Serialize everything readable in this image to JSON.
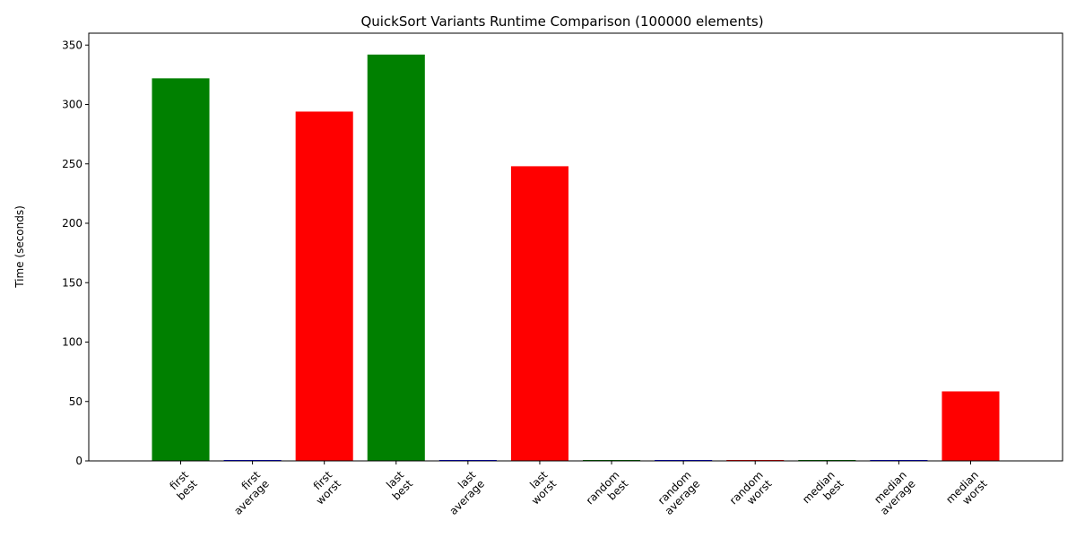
{
  "chart_data": {
    "type": "bar",
    "title": "QuickSort Variants Runtime Comparison (100000 elements)",
    "xlabel": "",
    "ylabel": "Time (seconds)",
    "ylim": [
      0,
      360
    ],
    "yticks": [
      0,
      50,
      100,
      150,
      200,
      250,
      300,
      350
    ],
    "grid": false,
    "categories": [
      [
        "first",
        "best"
      ],
      [
        "first",
        "average"
      ],
      [
        "first",
        "worst"
      ],
      [
        "last",
        "best"
      ],
      [
        "last",
        "average"
      ],
      [
        "last",
        "worst"
      ],
      [
        "random",
        "best"
      ],
      [
        "random",
        "average"
      ],
      [
        "random",
        "worst"
      ],
      [
        "median",
        "best"
      ],
      [
        "median",
        "average"
      ],
      [
        "median",
        "worst"
      ]
    ],
    "values": [
      322,
      0.6,
      294,
      342,
      0.6,
      248,
      0.5,
      0.6,
      0.6,
      0.5,
      0.6,
      58.5
    ],
    "colors": [
      "#008000",
      "#0000ff",
      "#ff0000",
      "#008000",
      "#0000ff",
      "#ff0000",
      "#008000",
      "#0000ff",
      "#ff0000",
      "#008000",
      "#0000ff",
      "#ff0000"
    ]
  }
}
